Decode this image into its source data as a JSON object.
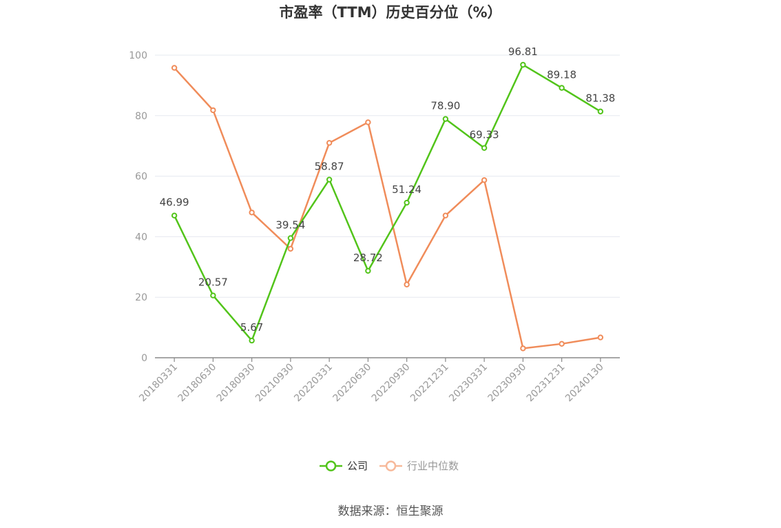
{
  "chart_data": {
    "type": "line",
    "title": "市盈率（TTM）历史百分位（%）",
    "categories": [
      "20180331",
      "20180630",
      "20180930",
      "20210930",
      "20220331",
      "20220630",
      "20220930",
      "20221231",
      "20230331",
      "20230930",
      "20231231",
      "20240130"
    ],
    "ylim": [
      0,
      100
    ],
    "yticks": [
      0,
      20,
      40,
      60,
      80,
      100
    ],
    "grid": true,
    "legend_position": "bottom",
    "series": [
      {
        "name": "公司",
        "color": "#52c41a",
        "values": [
          46.99,
          20.57,
          5.67,
          39.54,
          58.87,
          28.72,
          51.24,
          78.9,
          69.33,
          96.81,
          89.18,
          81.38
        ],
        "labels": [
          "46.99",
          "20.57",
          "5.67",
          "39.54",
          "58.87",
          "28.72",
          "51.24",
          "78.90",
          "69.33",
          "96.81",
          "89.18",
          "81.38"
        ]
      },
      {
        "name": "行业中位数",
        "color": "#f08c5a",
        "values": [
          95.8,
          81.8,
          48.0,
          36.0,
          71.0,
          77.8,
          24.2,
          47.0,
          58.7,
          3.1,
          4.6,
          6.7
        ]
      }
    ]
  },
  "source_text": "数据来源：恒生聚源"
}
